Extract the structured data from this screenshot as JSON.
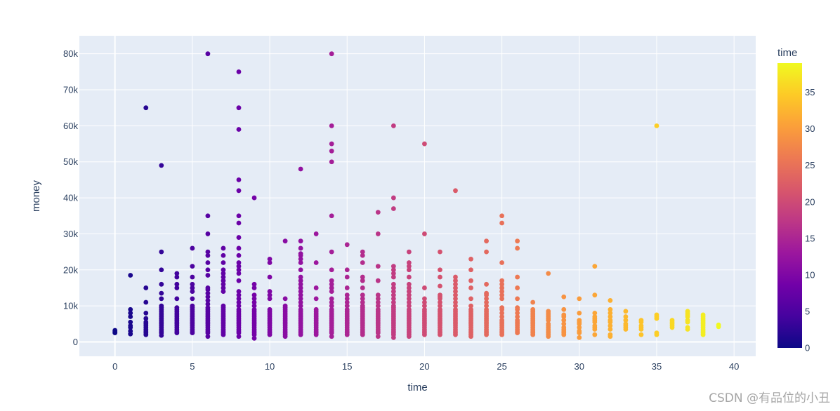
{
  "watermark": "CSDN @有品位的小丑",
  "chart_data": {
    "type": "scatter",
    "title": "",
    "xlabel": "time",
    "ylabel": "money",
    "xlim": [
      -2.3,
      41.4
    ],
    "ylim": [
      -4000,
      85000
    ],
    "x_ticks": [
      0,
      5,
      10,
      15,
      20,
      25,
      30,
      35,
      40
    ],
    "x_tick_labels": [
      "0",
      "5",
      "10",
      "15",
      "20",
      "25",
      "30",
      "35",
      "40"
    ],
    "y_ticks": [
      0,
      10000,
      20000,
      30000,
      40000,
      50000,
      60000,
      70000,
      80000
    ],
    "y_tick_labels": [
      "0",
      "10k",
      "20k",
      "30k",
      "40k",
      "50k",
      "60k",
      "70k",
      "80k"
    ],
    "grid": true,
    "legend": "none",
    "colorbar": {
      "title": "time",
      "range": [
        0,
        39
      ],
      "ticks": [
        0,
        5,
        10,
        15,
        20,
        25,
        30,
        35
      ],
      "tick_labels": [
        "0",
        "5",
        "10",
        "15",
        "20",
        "25",
        "30",
        "35"
      ],
      "colorscale": [
        "#0d0887",
        "#46039f",
        "#7201a8",
        "#9c179e",
        "#bd3786",
        "#d8576b",
        "#ed7953",
        "#fb9f3a",
        "#fdca26",
        "#f0f921"
      ]
    },
    "points": [
      {
        "x": 0,
        "y": [
          2500,
          2800,
          3000,
          3200
        ]
      },
      {
        "x": 1,
        "y": [
          2200,
          3000,
          4000,
          4500,
          5500,
          7000,
          8000,
          9000,
          18500
        ]
      },
      {
        "x": 2,
        "y": [
          2000,
          2500,
          3000,
          3500,
          4000,
          4500,
          5000,
          5500,
          6500,
          8000,
          11000,
          15000,
          65000
        ]
      },
      {
        "x": 3,
        "y": [
          1800,
          2500,
          3000,
          3500,
          4000,
          4500,
          5000,
          5500,
          6000,
          6500,
          7000,
          7500,
          8000,
          8500,
          9000,
          9500,
          10000,
          12000,
          13500,
          16000,
          20000,
          25000,
          49000
        ]
      },
      {
        "x": 4,
        "y": [
          2500,
          3000,
          3500,
          4000,
          4500,
          5000,
          5500,
          6000,
          6500,
          7000,
          7500,
          8000,
          8500,
          9000,
          9500,
          12000,
          15000,
          16000,
          18000,
          19000
        ]
      },
      {
        "x": 5,
        "y": [
          2500,
          3000,
          3500,
          4000,
          4500,
          5000,
          5500,
          6000,
          6500,
          7000,
          7500,
          8000,
          8500,
          9000,
          9500,
          10000,
          12000,
          14000,
          15000,
          16000,
          18000,
          21000,
          26000
        ]
      },
      {
        "x": 6,
        "y": [
          1500,
          2500,
          3000,
          3500,
          4000,
          4500,
          5000,
          5500,
          6000,
          6500,
          7000,
          7500,
          8000,
          8500,
          9000,
          9500,
          10500,
          11500,
          12500,
          13500,
          14500,
          15000,
          18500,
          20000,
          22000,
          24000,
          25000,
          30000,
          35000,
          80000
        ]
      },
      {
        "x": 7,
        "y": [
          2000,
          2500,
          3000,
          3500,
          4000,
          4500,
          5000,
          5500,
          6000,
          6500,
          7000,
          7500,
          8000,
          8500,
          9000,
          9500,
          10000,
          14000,
          15000,
          16000,
          17000,
          18000,
          19000,
          20000,
          22000,
          24000,
          26000
        ]
      },
      {
        "x": 8,
        "y": [
          1500,
          2500,
          3000,
          3500,
          4000,
          4500,
          5000,
          5500,
          6000,
          6500,
          7000,
          7500,
          8000,
          8500,
          9000,
          10000,
          11000,
          12000,
          13000,
          14000,
          17000,
          19000,
          20000,
          21000,
          22000,
          24000,
          26000,
          29000,
          33000,
          35000,
          42000,
          45000,
          59000,
          65000,
          75000
        ]
      },
      {
        "x": 9,
        "y": [
          1000,
          2000,
          2500,
          3000,
          3500,
          4000,
          4500,
          5000,
          5500,
          6000,
          6500,
          7000,
          7500,
          8000,
          8500,
          9000,
          10000,
          11000,
          12000,
          13000,
          15000,
          16000,
          40000
        ]
      },
      {
        "x": 10,
        "y": [
          2000,
          2500,
          3000,
          3500,
          4000,
          4500,
          5000,
          5500,
          6000,
          6500,
          7000,
          7500,
          8000,
          8500,
          9000,
          12000,
          13000,
          14000,
          18000,
          22000,
          23000
        ]
      },
      {
        "x": 11,
        "y": [
          1500,
          2000,
          2500,
          3000,
          3500,
          4000,
          4500,
          5000,
          5500,
          6000,
          6500,
          7000,
          7500,
          8000,
          8500,
          9000,
          9500,
          10000,
          12000,
          28000
        ]
      },
      {
        "x": 12,
        "y": [
          2000,
          2500,
          3000,
          3500,
          4000,
          4500,
          5000,
          5500,
          6000,
          6500,
          7000,
          7500,
          8000,
          8500,
          9000,
          10000,
          11000,
          12000,
          13000,
          14000,
          15000,
          16000,
          17000,
          18000,
          20000,
          22000,
          23000,
          24000,
          24500,
          26000,
          28000,
          48000
        ]
      },
      {
        "x": 13,
        "y": [
          2000,
          2500,
          3000,
          3500,
          4000,
          4500,
          5000,
          5500,
          6000,
          6500,
          7000,
          7500,
          8000,
          8500,
          9000,
          12000,
          15000,
          22000,
          30000
        ]
      },
      {
        "x": 14,
        "y": [
          1500,
          2500,
          3000,
          3500,
          4000,
          4500,
          5000,
          5500,
          6000,
          6500,
          7000,
          7500,
          8000,
          8500,
          9000,
          10000,
          11000,
          12000,
          14000,
          15000,
          16000,
          17000,
          20000,
          25000,
          35000,
          50000,
          53000,
          55000,
          60000,
          80000
        ]
      },
      {
        "x": 15,
        "y": [
          2000,
          2500,
          3000,
          3500,
          4000,
          4500,
          5000,
          5500,
          6000,
          6500,
          7000,
          7500,
          8000,
          8500,
          9000,
          10000,
          11000,
          12000,
          13000,
          15000,
          18000,
          20000,
          27000
        ]
      },
      {
        "x": 16,
        "y": [
          2000,
          2500,
          3000,
          3500,
          4000,
          4500,
          5000,
          5500,
          6000,
          6500,
          7000,
          7500,
          8000,
          8500,
          9000,
          9500,
          10000,
          11000,
          12000,
          13000,
          15000,
          17000,
          18000,
          22000,
          24000,
          25000
        ]
      },
      {
        "x": 17,
        "y": [
          1500,
          2500,
          3000,
          3500,
          4000,
          4500,
          5000,
          5500,
          6000,
          6500,
          7000,
          7500,
          8000,
          8500,
          9000,
          10000,
          11000,
          12000,
          13000,
          17000,
          21000,
          30000,
          36000
        ]
      },
      {
        "x": 18,
        "y": [
          1200,
          2000,
          2500,
          3000,
          3500,
          4000,
          4500,
          5000,
          5500,
          6000,
          6500,
          7000,
          7500,
          8000,
          8500,
          9000,
          9500,
          10000,
          11000,
          12000,
          13000,
          14000,
          15000,
          16000,
          18000,
          19000,
          20000,
          21000,
          37000,
          40000,
          60000
        ]
      },
      {
        "x": 19,
        "y": [
          1500,
          2000,
          2500,
          3000,
          3500,
          4000,
          4500,
          5000,
          5500,
          6000,
          6500,
          7000,
          7500,
          8000,
          8500,
          9000,
          10000,
          11000,
          12000,
          13000,
          14000,
          15000,
          16000,
          18000,
          20000,
          21000,
          22000,
          25000
        ]
      },
      {
        "x": 20,
        "y": [
          2000,
          2500,
          3000,
          3500,
          4000,
          4500,
          5000,
          5500,
          6000,
          6500,
          7000,
          7500,
          8000,
          8500,
          9000,
          10000,
          11000,
          12000,
          15000,
          30000,
          55000
        ]
      },
      {
        "x": 21,
        "y": [
          2000,
          2500,
          3000,
          3500,
          4000,
          4500,
          5000,
          5500,
          6000,
          6500,
          7000,
          7500,
          8000,
          8500,
          9000,
          10000,
          11000,
          12000,
          12500,
          13000,
          15500,
          18000,
          20000,
          25000
        ]
      },
      {
        "x": 22,
        "y": [
          2000,
          2500,
          3000,
          3500,
          4000,
          4500,
          5000,
          5500,
          6000,
          6500,
          7000,
          7500,
          8000,
          8500,
          9000,
          10000,
          11000,
          12000,
          13000,
          14000,
          15000,
          16000,
          17000,
          18000,
          42000
        ]
      },
      {
        "x": 23,
        "y": [
          1500,
          2000,
          2500,
          3000,
          3500,
          4000,
          4500,
          5000,
          5500,
          6000,
          6500,
          7000,
          7500,
          8000,
          8500,
          9000,
          10000,
          12000,
          15000,
          17000,
          20000,
          23000
        ]
      },
      {
        "x": 24,
        "y": [
          2000,
          2500,
          3000,
          3500,
          4000,
          4500,
          5000,
          5500,
          6000,
          6500,
          7000,
          7500,
          8000,
          8500,
          9000,
          10000,
          11000,
          12000,
          13000,
          13500,
          16000,
          25000,
          28000
        ]
      },
      {
        "x": 25,
        "y": [
          2000,
          2500,
          3000,
          3500,
          4000,
          4500,
          5000,
          5500,
          6000,
          7000,
          8000,
          9000,
          9500,
          12000,
          13000,
          14000,
          15000,
          16000,
          17000,
          22000,
          33000,
          35000
        ]
      },
      {
        "x": 26,
        "y": [
          2500,
          3000,
          3500,
          4000,
          4500,
          5000,
          5500,
          6000,
          7000,
          8000,
          9000,
          9500,
          12000,
          15000,
          18000,
          26000,
          28000
        ]
      },
      {
        "x": 27,
        "y": [
          2000,
          2500,
          3000,
          3500,
          4000,
          4500,
          5000,
          5500,
          6000,
          6500,
          7000,
          7500,
          8000,
          8500,
          9000,
          11000
        ]
      },
      {
        "x": 28,
        "y": [
          1500,
          2000,
          2500,
          3000,
          3500,
          4000,
          4500,
          5000,
          6000,
          6500,
          7000,
          7500,
          8000,
          8500,
          19000
        ]
      },
      {
        "x": 29,
        "y": [
          2000,
          2500,
          3000,
          3500,
          4000,
          5000,
          6000,
          7000,
          7500,
          9000,
          12500
        ]
      },
      {
        "x": 30,
        "y": [
          1200,
          2500,
          3000,
          4000,
          5000,
          5500,
          6000,
          8000,
          12000
        ]
      },
      {
        "x": 31,
        "y": [
          2000,
          3500,
          4000,
          4500,
          5500,
          6000,
          6500,
          7000,
          8000,
          13000,
          21000
        ]
      },
      {
        "x": 32,
        "y": [
          1500,
          2000,
          3500,
          4500,
          5500,
          6000,
          7000,
          8000,
          9000,
          11500
        ]
      },
      {
        "x": 33,
        "y": [
          3500,
          4000,
          4500,
          5000,
          6000,
          7000,
          8500
        ]
      },
      {
        "x": 34,
        "y": [
          2000,
          3500,
          4000,
          4500,
          5500,
          6000
        ]
      },
      {
        "x": 35,
        "y": [
          2000,
          2500,
          6500,
          7000,
          7500,
          60000
        ]
      },
      {
        "x": 36,
        "y": [
          4000,
          4500,
          5000,
          5500,
          6000
        ]
      },
      {
        "x": 37,
        "y": [
          3500,
          4000,
          5500,
          6000,
          7000,
          7500,
          8000,
          8500
        ]
      },
      {
        "x": 38,
        "y": [
          2000,
          2500,
          3000,
          3500,
          4000,
          4500,
          5000,
          5500,
          6000,
          6500,
          7000,
          7500
        ]
      },
      {
        "x": 39,
        "y": [
          4200,
          4700
        ]
      }
    ]
  }
}
